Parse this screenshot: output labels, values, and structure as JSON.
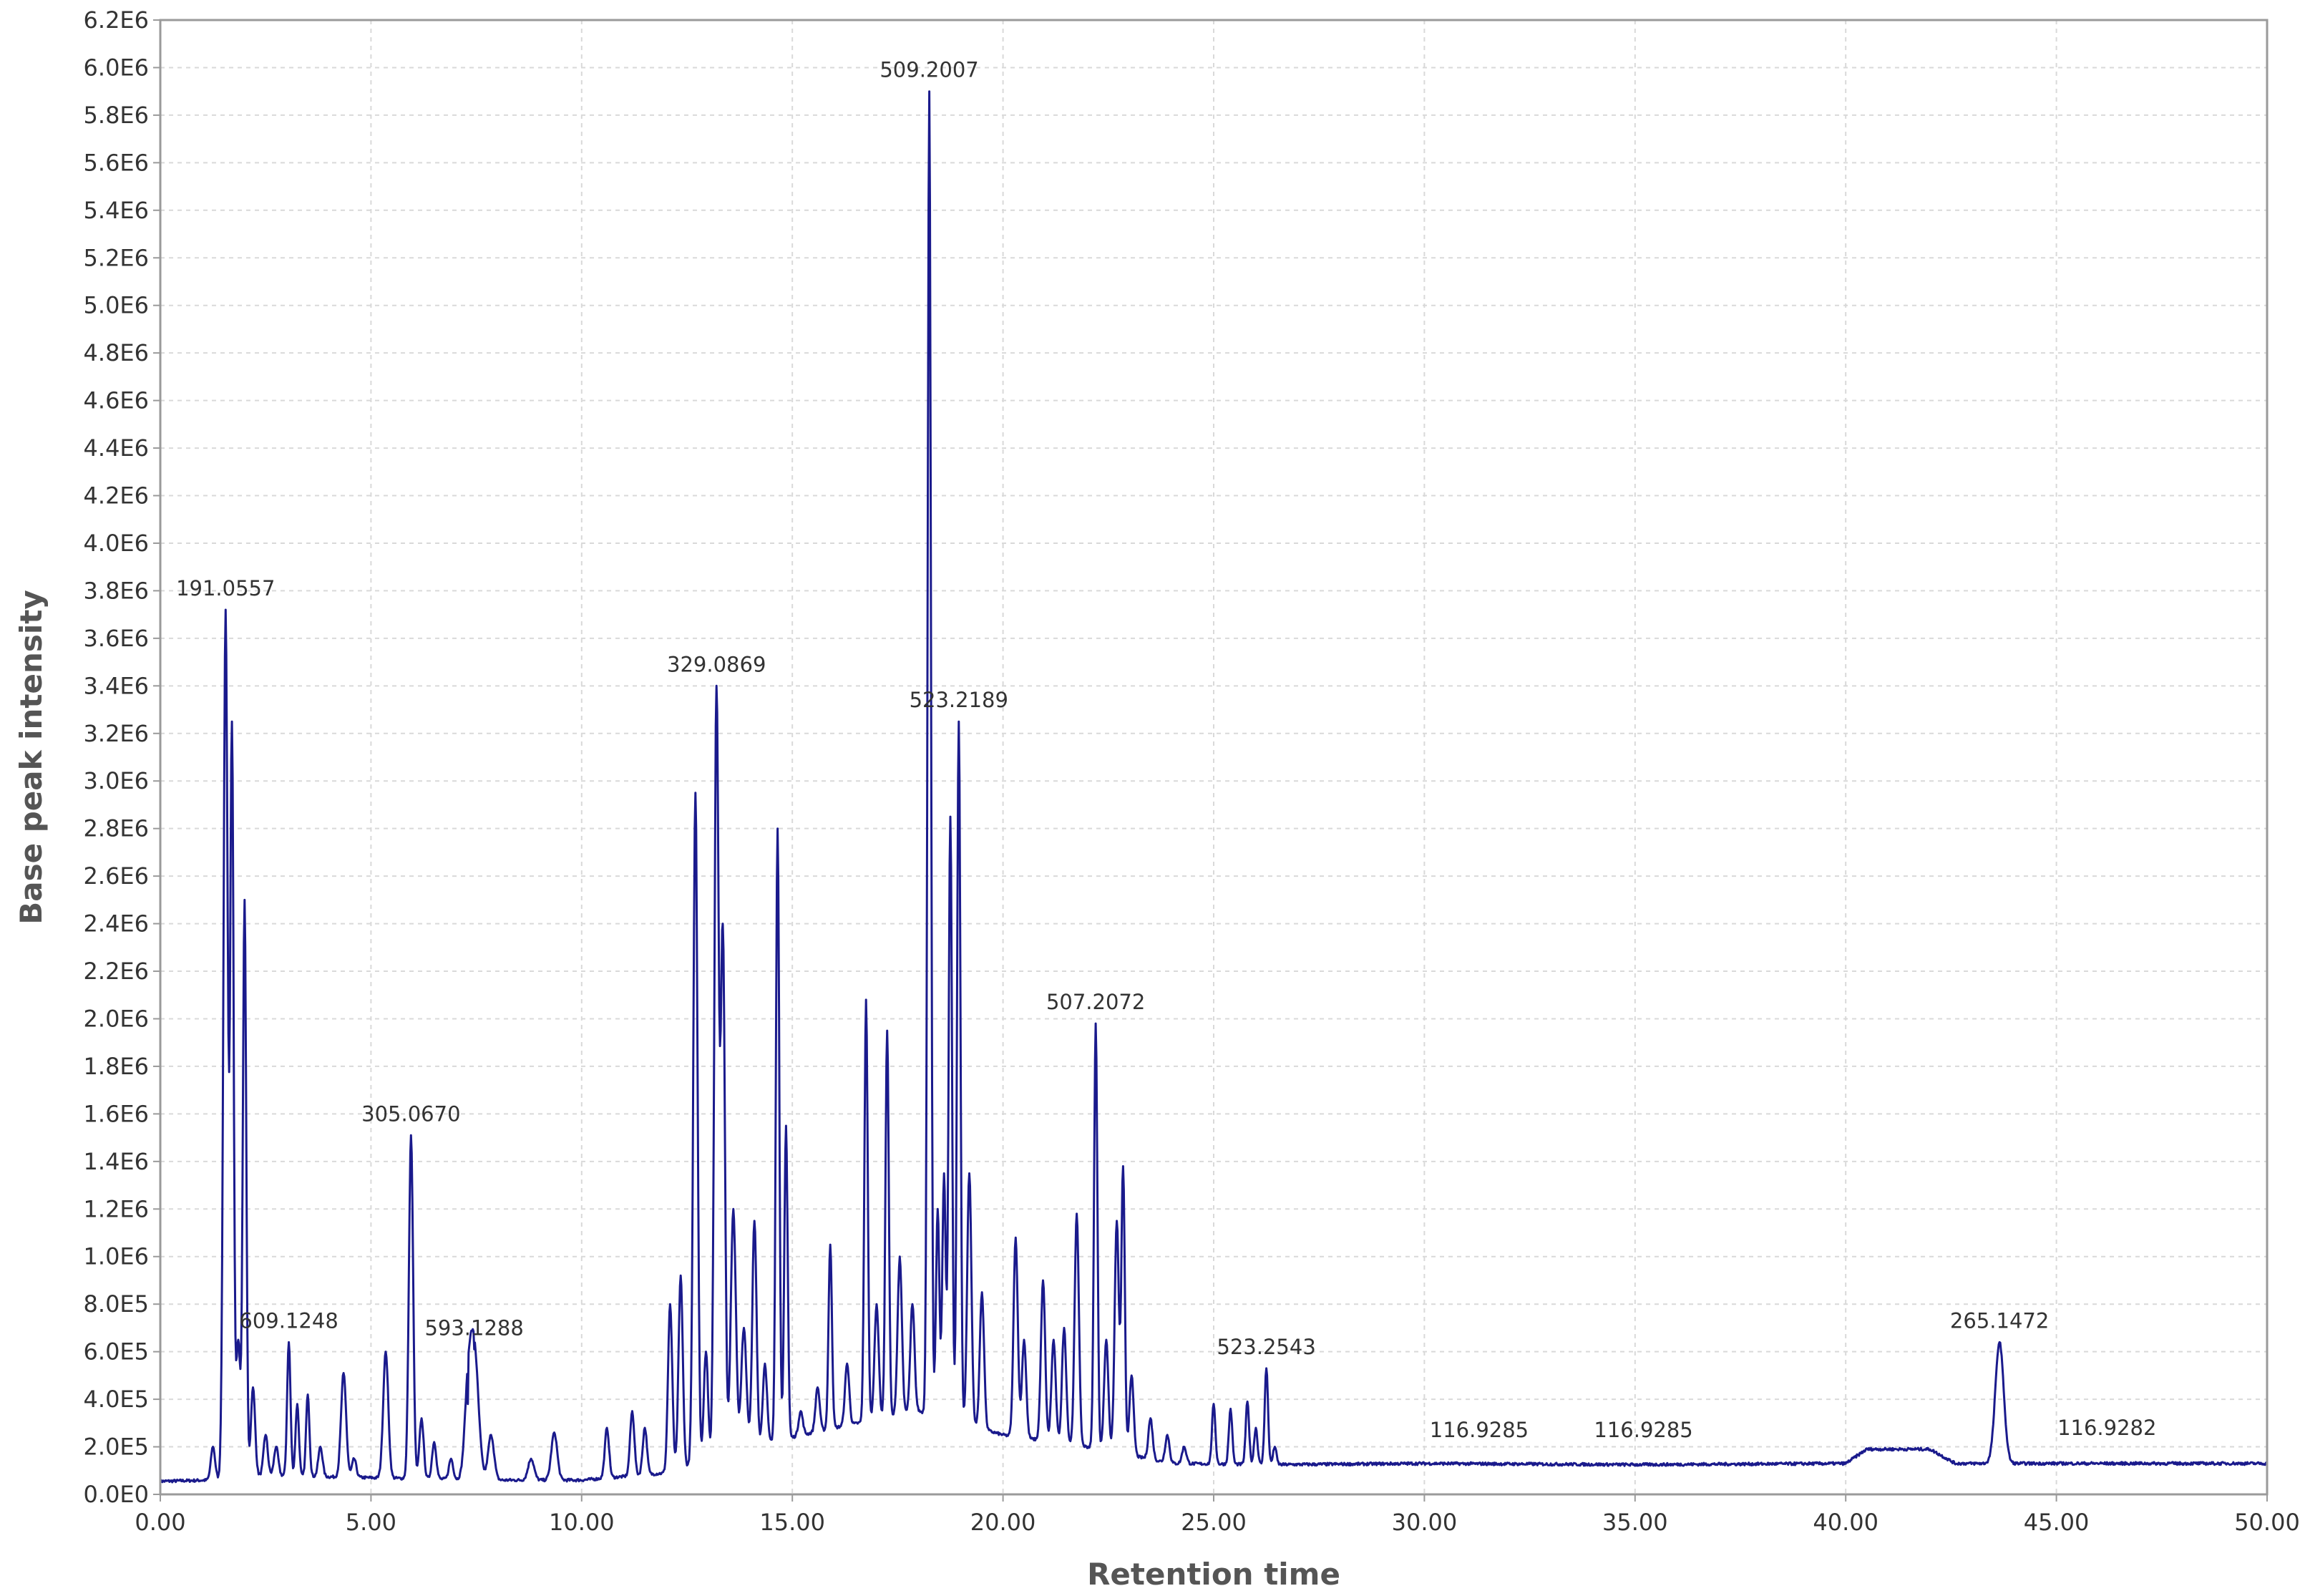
{
  "chart_data": {
    "type": "line",
    "title": "",
    "xlabel": "Retention time",
    "ylabel": "Base peak intensity",
    "xlim": [
      0,
      50
    ],
    "ylim": [
      0,
      6200000
    ],
    "grid": true,
    "legend": "none",
    "colors": {
      "line": "#1a1a8c",
      "grid": "#d9d9d9",
      "frame": "#9a9a9a",
      "background": "#ffffff"
    },
    "x_ticks": [
      "0.00",
      "5.00",
      "10.00",
      "15.00",
      "20.00",
      "25.00",
      "30.00",
      "35.00",
      "40.00",
      "45.00",
      "50.00"
    ],
    "y_ticks": [
      "0.0E0",
      "2.0E5",
      "4.0E5",
      "6.0E5",
      "8.0E5",
      "1.0E6",
      "1.2E6",
      "1.4E6",
      "1.6E6",
      "1.8E6",
      "2.0E6",
      "2.2E6",
      "2.4E6",
      "2.6E6",
      "2.8E6",
      "3.0E6",
      "3.2E6",
      "3.4E6",
      "3.6E6",
      "3.8E6",
      "4.0E6",
      "4.2E6",
      "4.4E6",
      "4.6E6",
      "4.8E6",
      "5.0E6",
      "5.2E6",
      "5.4E6",
      "5.6E6",
      "5.8E6",
      "6.0E6",
      "6.2E6"
    ],
    "baseline": [
      [
        0,
        55000
      ],
      [
        1.2,
        60000
      ],
      [
        2.5,
        80000
      ],
      [
        5,
        70000
      ],
      [
        8,
        60000
      ],
      [
        10,
        60000
      ],
      [
        12,
        90000
      ],
      [
        14,
        200000
      ],
      [
        16,
        280000
      ],
      [
        18,
        350000
      ],
      [
        20,
        250000
      ],
      [
        22,
        200000
      ],
      [
        24,
        130000
      ],
      [
        26.5,
        125000
      ],
      [
        30,
        130000
      ],
      [
        35,
        125000
      ],
      [
        40,
        130000
      ],
      [
        40.5,
        190000
      ],
      [
        42,
        190000
      ],
      [
        42.6,
        130000
      ],
      [
        45,
        130000
      ],
      [
        50,
        130000
      ]
    ],
    "peaks": [
      {
        "rt": 1.25,
        "intensity": 200000,
        "width": 0.05
      },
      {
        "rt": 1.55,
        "intensity": 3720000,
        "width": 0.05
      },
      {
        "rt": 1.7,
        "intensity": 3250000,
        "width": 0.04
      },
      {
        "rt": 1.85,
        "intensity": 650000,
        "width": 0.05
      },
      {
        "rt": 2.0,
        "intensity": 2500000,
        "width": 0.04
      },
      {
        "rt": 2.2,
        "intensity": 450000,
        "width": 0.05
      },
      {
        "rt": 2.5,
        "intensity": 250000,
        "width": 0.05
      },
      {
        "rt": 2.75,
        "intensity": 200000,
        "width": 0.05
      },
      {
        "rt": 3.05,
        "intensity": 640000,
        "width": 0.04
      },
      {
        "rt": 3.25,
        "intensity": 380000,
        "width": 0.04
      },
      {
        "rt": 3.5,
        "intensity": 420000,
        "width": 0.04
      },
      {
        "rt": 3.8,
        "intensity": 200000,
        "width": 0.05
      },
      {
        "rt": 4.35,
        "intensity": 510000,
        "width": 0.06
      },
      {
        "rt": 4.6,
        "intensity": 150000,
        "width": 0.05
      },
      {
        "rt": 5.35,
        "intensity": 600000,
        "width": 0.06
      },
      {
        "rt": 5.95,
        "intensity": 1510000,
        "width": 0.05
      },
      {
        "rt": 6.2,
        "intensity": 320000,
        "width": 0.05
      },
      {
        "rt": 6.5,
        "intensity": 220000,
        "width": 0.05
      },
      {
        "rt": 6.9,
        "intensity": 150000,
        "width": 0.05
      },
      {
        "rt": 7.3,
        "intensity": 380000,
        "width": 0.08
      },
      {
        "rt": 7.45,
        "intensity": 610000,
        "width": 0.1
      },
      {
        "rt": 7.85,
        "intensity": 250000,
        "width": 0.07
      },
      {
        "rt": 8.8,
        "intensity": 150000,
        "width": 0.07
      },
      {
        "rt": 9.35,
        "intensity": 260000,
        "width": 0.07
      },
      {
        "rt": 10.6,
        "intensity": 280000,
        "width": 0.05
      },
      {
        "rt": 11.2,
        "intensity": 350000,
        "width": 0.05
      },
      {
        "rt": 11.5,
        "intensity": 280000,
        "width": 0.05
      },
      {
        "rt": 12.1,
        "intensity": 800000,
        "width": 0.05
      },
      {
        "rt": 12.35,
        "intensity": 920000,
        "width": 0.05
      },
      {
        "rt": 12.7,
        "intensity": 2950000,
        "width": 0.05
      },
      {
        "rt": 12.95,
        "intensity": 600000,
        "width": 0.05
      },
      {
        "rt": 13.2,
        "intensity": 3400000,
        "width": 0.05
      },
      {
        "rt": 13.35,
        "intensity": 2400000,
        "width": 0.05
      },
      {
        "rt": 13.6,
        "intensity": 1200000,
        "width": 0.06
      },
      {
        "rt": 13.85,
        "intensity": 700000,
        "width": 0.06
      },
      {
        "rt": 14.1,
        "intensity": 1150000,
        "width": 0.05
      },
      {
        "rt": 14.35,
        "intensity": 550000,
        "width": 0.05
      },
      {
        "rt": 14.65,
        "intensity": 2800000,
        "width": 0.04
      },
      {
        "rt": 14.85,
        "intensity": 1550000,
        "width": 0.04
      },
      {
        "rt": 15.2,
        "intensity": 350000,
        "width": 0.05
      },
      {
        "rt": 15.6,
        "intensity": 450000,
        "width": 0.05
      },
      {
        "rt": 15.9,
        "intensity": 1050000,
        "width": 0.04
      },
      {
        "rt": 16.3,
        "intensity": 550000,
        "width": 0.05
      },
      {
        "rt": 16.75,
        "intensity": 2080000,
        "width": 0.04
      },
      {
        "rt": 17.0,
        "intensity": 800000,
        "width": 0.05
      },
      {
        "rt": 17.25,
        "intensity": 1950000,
        "width": 0.04
      },
      {
        "rt": 17.55,
        "intensity": 1000000,
        "width": 0.05
      },
      {
        "rt": 17.85,
        "intensity": 800000,
        "width": 0.05
      },
      {
        "rt": 18.25,
        "intensity": 5900000,
        "width": 0.04
      },
      {
        "rt": 18.45,
        "intensity": 1200000,
        "width": 0.04
      },
      {
        "rt": 18.6,
        "intensity": 1350000,
        "width": 0.04
      },
      {
        "rt": 18.75,
        "intensity": 2850000,
        "width": 0.04
      },
      {
        "rt": 18.95,
        "intensity": 3250000,
        "width": 0.04
      },
      {
        "rt": 19.2,
        "intensity": 1350000,
        "width": 0.05
      },
      {
        "rt": 19.5,
        "intensity": 850000,
        "width": 0.05
      },
      {
        "rt": 20.3,
        "intensity": 1080000,
        "width": 0.05
      },
      {
        "rt": 20.5,
        "intensity": 650000,
        "width": 0.05
      },
      {
        "rt": 20.95,
        "intensity": 900000,
        "width": 0.05
      },
      {
        "rt": 21.2,
        "intensity": 650000,
        "width": 0.05
      },
      {
        "rt": 21.45,
        "intensity": 700000,
        "width": 0.05
      },
      {
        "rt": 21.75,
        "intensity": 1180000,
        "width": 0.05
      },
      {
        "rt": 22.2,
        "intensity": 1980000,
        "width": 0.04
      },
      {
        "rt": 22.45,
        "intensity": 650000,
        "width": 0.05
      },
      {
        "rt": 22.7,
        "intensity": 1150000,
        "width": 0.05
      },
      {
        "rt": 22.85,
        "intensity": 1380000,
        "width": 0.04
      },
      {
        "rt": 23.05,
        "intensity": 500000,
        "width": 0.05
      },
      {
        "rt": 23.5,
        "intensity": 320000,
        "width": 0.05
      },
      {
        "rt": 23.9,
        "intensity": 250000,
        "width": 0.05
      },
      {
        "rt": 24.3,
        "intensity": 200000,
        "width": 0.05
      },
      {
        "rt": 25.0,
        "intensity": 380000,
        "width": 0.04
      },
      {
        "rt": 25.4,
        "intensity": 360000,
        "width": 0.04
      },
      {
        "rt": 25.8,
        "intensity": 390000,
        "width": 0.04
      },
      {
        "rt": 26.0,
        "intensity": 280000,
        "width": 0.04
      },
      {
        "rt": 26.25,
        "intensity": 530000,
        "width": 0.04
      },
      {
        "rt": 26.45,
        "intensity": 200000,
        "width": 0.04
      },
      {
        "rt": 43.65,
        "intensity": 640000,
        "width": 0.1
      }
    ],
    "annotations": [
      {
        "text": "191.0557",
        "x": 1.55,
        "y": 3720000
      },
      {
        "text": "609.1248",
        "x": 3.05,
        "y": 640000
      },
      {
        "text": "305.0670",
        "x": 5.95,
        "y": 1510000
      },
      {
        "text": "593.1288",
        "x": 7.45,
        "y": 610000
      },
      {
        "text": "329.0869",
        "x": 13.2,
        "y": 3400000
      },
      {
        "text": "509.2007",
        "x": 18.25,
        "y": 5900000
      },
      {
        "text": "523.2189",
        "x": 18.95,
        "y": 3250000
      },
      {
        "text": "507.2072",
        "x": 22.2,
        "y": 1980000
      },
      {
        "text": "523.2543",
        "x": 26.25,
        "y": 530000
      },
      {
        "text": "116.9285",
        "x": 31.3,
        "y": 180000
      },
      {
        "text": "116.9285",
        "x": 35.2,
        "y": 180000
      },
      {
        "text": "265.1472",
        "x": 43.65,
        "y": 640000
      },
      {
        "text": "116.9282",
        "x": 46.2,
        "y": 190000
      }
    ]
  }
}
